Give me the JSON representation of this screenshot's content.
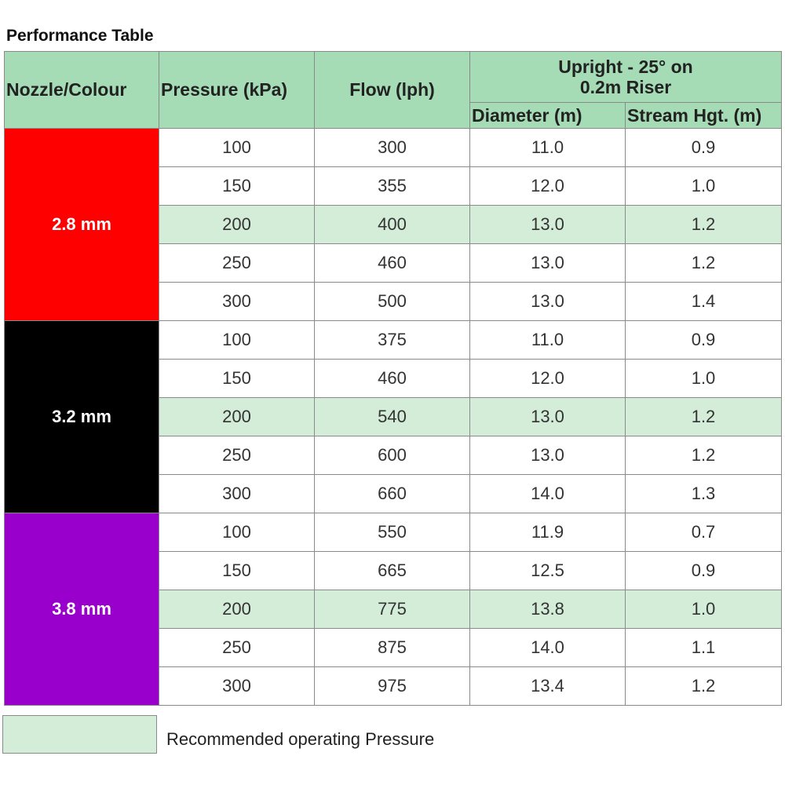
{
  "title": "Performance Table",
  "table": {
    "header_color": "#a5dcb6",
    "columns": [
      "Nozzle/Colour",
      "Pressure (kPa)",
      "Flow (lph)"
    ],
    "group_header": "Upright - 25° on 0.2m Riser",
    "sub_columns": [
      "Diameter (m)",
      "Stream Hgt. (m)"
    ],
    "highlight_color": "#d4edd9",
    "groups": [
      {
        "nozzle": "2.8 mm",
        "color": "#ff0000",
        "rows": [
          {
            "recommended": false,
            "cells": [
              "100",
              "300",
              "11.0",
              "0.9"
            ]
          },
          {
            "recommended": false,
            "cells": [
              "150",
              "355",
              "12.0",
              "1.0"
            ]
          },
          {
            "recommended": true,
            "cells": [
              "200",
              "400",
              "13.0",
              "1.2"
            ]
          },
          {
            "recommended": false,
            "cells": [
              "250",
              "460",
              "13.0",
              "1.2"
            ]
          },
          {
            "recommended": false,
            "cells": [
              "300",
              "500",
              "13.0",
              "1.4"
            ]
          }
        ]
      },
      {
        "nozzle": "3.2 mm",
        "color": "#000000",
        "rows": [
          {
            "recommended": false,
            "cells": [
              "100",
              "375",
              "11.0",
              "0.9"
            ]
          },
          {
            "recommended": false,
            "cells": [
              "150",
              "460",
              "12.0",
              "1.0"
            ]
          },
          {
            "recommended": true,
            "cells": [
              "200",
              "540",
              "13.0",
              "1.2"
            ]
          },
          {
            "recommended": false,
            "cells": [
              "250",
              "600",
              "13.0",
              "1.2"
            ]
          },
          {
            "recommended": false,
            "cells": [
              "300",
              "660",
              "14.0",
              "1.3"
            ]
          }
        ]
      },
      {
        "nozzle": "3.8 mm",
        "color": "#9900cc",
        "rows": [
          {
            "recommended": false,
            "cells": [
              "100",
              "550",
              "11.9",
              "0.7"
            ]
          },
          {
            "recommended": false,
            "cells": [
              "150",
              "665",
              "12.5",
              "0.9"
            ]
          },
          {
            "recommended": true,
            "cells": [
              "200",
              "775",
              "13.8",
              "1.0"
            ]
          },
          {
            "recommended": false,
            "cells": [
              "250",
              "875",
              "14.0",
              "1.1"
            ]
          },
          {
            "recommended": false,
            "cells": [
              "300",
              "975",
              "13.4",
              "1.2"
            ]
          }
        ]
      }
    ]
  },
  "legend": {
    "label": "Recommended operating Pressure"
  }
}
